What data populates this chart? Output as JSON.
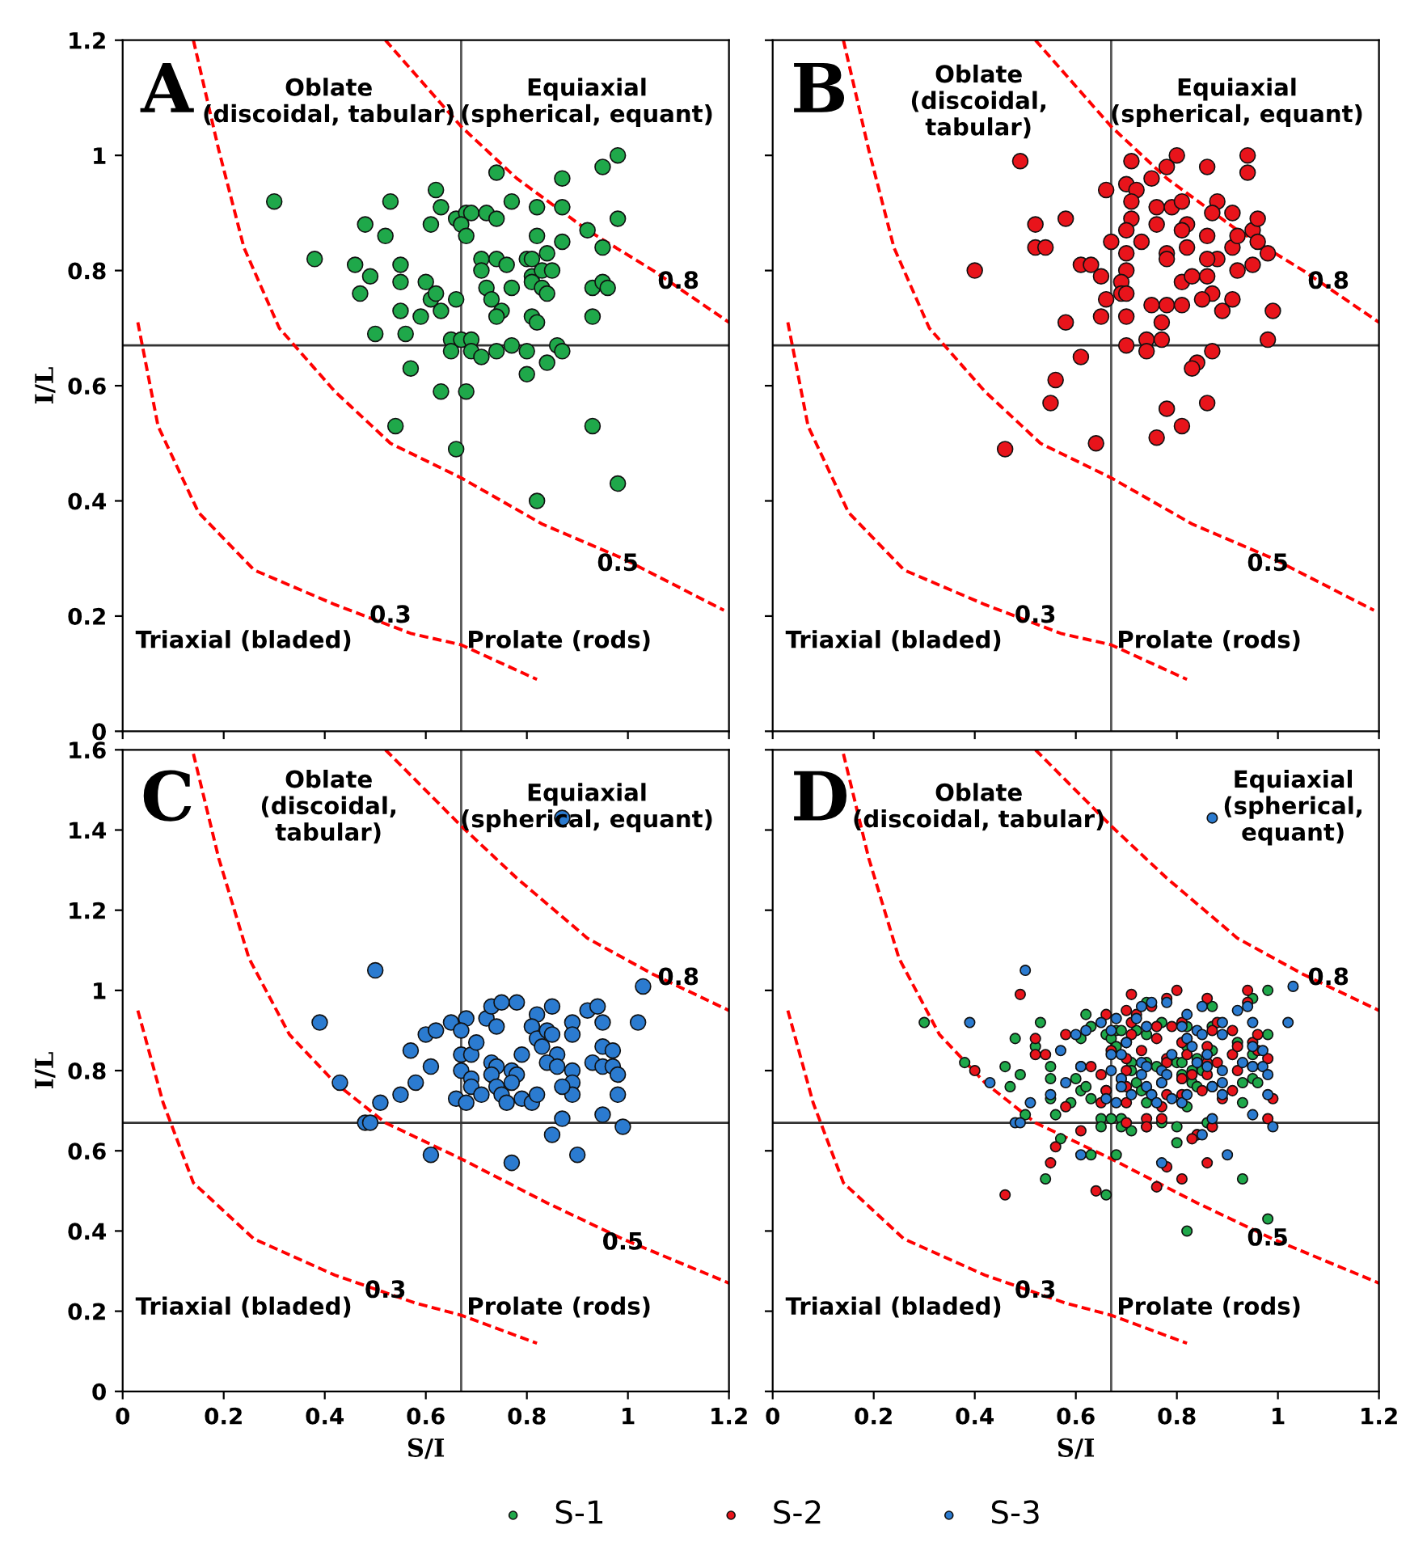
{
  "chart_data": [
    {
      "type": "scatter",
      "title": "A",
      "ylabel": "I/L",
      "xlim": [
        0,
        1.2
      ],
      "ylim": [
        0,
        1.2
      ],
      "xticks": [
        0,
        0.2,
        0.4,
        0.6,
        0.8,
        1,
        1.2
      ],
      "yticks": [
        0,
        0.2,
        0.4,
        0.6,
        0.8,
        1,
        1.2
      ],
      "tick_labels": "y",
      "ref_lines": [
        {
          "axis": "x",
          "value": 0.67,
          "color": "#555555"
        },
        {
          "axis": "y",
          "value": 0.67,
          "color": "#333333"
        }
      ],
      "annotations": [
        "Oblate\n(discoidal, tabular)",
        "Equiaxial\n(spherical, equant)",
        "Triaxial (bladed)",
        "Prolate (rods)",
        {
          "text": "0.8",
          "x": 1.1,
          "y": 0.78
        },
        {
          "text": "0.5",
          "x": 0.98,
          "y": 0.29
        },
        {
          "text": "0.3",
          "x": 0.53,
          "y": 0.2
        }
      ],
      "series": [
        {
          "type": "line",
          "color": "#ff0000",
          "line_style": "dashed",
          "marker": "none",
          "x": [
            0.52,
            0.67,
            0.78,
            0.92,
            1.05,
            1.2
          ],
          "values": [
            1.2,
            1.05,
            0.96,
            0.87,
            0.8,
            0.71
          ]
        },
        {
          "type": "line",
          "color": "#ff0000",
          "line_style": "dashed",
          "marker": "none",
          "x": [
            0.14,
            0.19,
            0.24,
            0.31,
            0.42,
            0.53,
            0.67,
            0.83,
            0.99,
            1.19
          ],
          "values": [
            1.2,
            1.01,
            0.84,
            0.7,
            0.59,
            0.5,
            0.44,
            0.36,
            0.3,
            0.21
          ]
        },
        {
          "type": "line",
          "color": "#ff0000",
          "line_style": "dashed",
          "marker": "none",
          "x": [
            0.03,
            0.07,
            0.15,
            0.26,
            0.42,
            0.57,
            0.67,
            0.82
          ],
          "values": [
            0.71,
            0.53,
            0.38,
            0.28,
            0.22,
            0.17,
            0.15,
            0.09
          ]
        },
        {
          "type": "scatter",
          "color": "#1fa84a",
          "marker": "circle",
          "x": [
            0.3,
            0.38,
            0.46,
            0.48,
            0.49,
            0.47,
            0.5,
            0.53,
            0.52,
            0.55,
            0.55,
            0.55,
            0.56,
            0.57,
            0.54,
            0.6,
            0.59,
            0.61,
            0.62,
            0.63,
            0.61,
            0.62,
            0.63,
            0.66,
            0.66,
            0.68,
            0.69,
            0.67,
            0.68,
            0.72,
            0.74,
            0.74,
            0.77,
            0.82,
            0.87,
            0.87,
            0.95,
            0.98,
            0.98,
            0.92,
            0.82,
            0.87,
            0.84,
            0.95,
            0.71,
            0.74,
            0.71,
            0.76,
            0.8,
            0.81,
            0.81,
            0.83,
            0.85,
            0.77,
            0.72,
            0.73,
            0.75,
            0.74,
            0.81,
            0.83,
            0.84,
            0.81,
            0.82,
            0.93,
            0.95,
            0.96,
            0.93,
            0.65,
            0.65,
            0.67,
            0.69,
            0.69,
            0.71,
            0.74,
            0.77,
            0.8,
            0.86,
            0.87,
            0.84,
            0.8,
            0.63,
            0.68,
            0.66,
            0.93,
            0.98,
            0.82
          ],
          "values": [
            0.92,
            0.82,
            0.81,
            0.88,
            0.79,
            0.76,
            0.69,
            0.92,
            0.86,
            0.81,
            0.78,
            0.73,
            0.69,
            0.63,
            0.53,
            0.78,
            0.72,
            0.88,
            0.94,
            0.91,
            0.75,
            0.76,
            0.73,
            0.75,
            0.89,
            0.9,
            0.9,
            0.88,
            0.86,
            0.9,
            0.89,
            0.97,
            0.92,
            0.91,
            0.96,
            0.91,
            0.98,
            1.0,
            0.89,
            0.87,
            0.86,
            0.85,
            0.83,
            0.84,
            0.82,
            0.82,
            0.8,
            0.81,
            0.82,
            0.82,
            0.79,
            0.8,
            0.8,
            0.77,
            0.77,
            0.75,
            0.73,
            0.72,
            0.78,
            0.77,
            0.76,
            0.72,
            0.71,
            0.77,
            0.78,
            0.77,
            0.72,
            0.68,
            0.66,
            0.68,
            0.68,
            0.66,
            0.65,
            0.66,
            0.67,
            0.66,
            0.67,
            0.66,
            0.64,
            0.62,
            0.59,
            0.59,
            0.49,
            0.53,
            0.43,
            0.4
          ]
        }
      ]
    },
    {
      "type": "scatter",
      "title": "B",
      "xlim": [
        0,
        1.2
      ],
      "ylim": [
        0,
        1.2
      ],
      "xticks": [
        0,
        0.2,
        0.4,
        0.6,
        0.8,
        1,
        1.2
      ],
      "yticks": [
        0,
        0.2,
        0.4,
        0.6,
        0.8,
        1,
        1.2
      ],
      "tick_labels": false,
      "ref_lines": [
        {
          "axis": "x",
          "value": 0.67,
          "color": "#555555"
        },
        {
          "axis": "y",
          "value": 0.67,
          "color": "#333333"
        }
      ],
      "annotations": [
        "Oblate\n(discoidal,\ntabular)",
        "Equiaxial\n(spherical, equant)",
        "Triaxial (bladed)",
        "Prolate (rods)",
        {
          "text": "0.8",
          "x": 1.1,
          "y": 0.78
        },
        {
          "text": "0.5",
          "x": 0.98,
          "y": 0.29
        },
        {
          "text": "0.3",
          "x": 0.52,
          "y": 0.2
        }
      ],
      "series": [
        {
          "type": "line",
          "color": "#ff0000",
          "line_style": "dashed",
          "marker": "none",
          "x": [
            0.52,
            0.67,
            0.78,
            0.92,
            1.05,
            1.2
          ],
          "values": [
            1.2,
            1.05,
            0.96,
            0.87,
            0.8,
            0.71
          ]
        },
        {
          "type": "line",
          "color": "#ff0000",
          "line_style": "dashed",
          "marker": "none",
          "x": [
            0.14,
            0.19,
            0.24,
            0.31,
            0.42,
            0.53,
            0.67,
            0.83,
            0.99,
            1.19
          ],
          "values": [
            1.2,
            1.01,
            0.84,
            0.7,
            0.59,
            0.5,
            0.44,
            0.36,
            0.3,
            0.21
          ]
        },
        {
          "type": "line",
          "color": "#ff0000",
          "line_style": "dashed",
          "marker": "none",
          "x": [
            0.03,
            0.07,
            0.15,
            0.26,
            0.42,
            0.57,
            0.67,
            0.82
          ],
          "values": [
            0.71,
            0.53,
            0.38,
            0.28,
            0.22,
            0.17,
            0.15,
            0.09
          ]
        },
        {
          "type": "scatter",
          "color": "#e8141b",
          "marker": "circle",
          "x": [
            0.49,
            0.4,
            0.52,
            0.58,
            0.52,
            0.54,
            0.61,
            0.63,
            0.65,
            0.58,
            0.65,
            0.66,
            0.66,
            0.67,
            0.61,
            0.56,
            0.55,
            0.46,
            0.64,
            0.71,
            0.7,
            0.72,
            0.75,
            0.78,
            0.8,
            0.86,
            0.94,
            0.94,
            0.71,
            0.71,
            0.76,
            0.79,
            0.81,
            0.76,
            0.82,
            0.7,
            0.73,
            0.81,
            0.82,
            0.78,
            0.78,
            0.7,
            0.7,
            0.69,
            0.69,
            0.7,
            0.7,
            0.7,
            0.74,
            0.74,
            0.75,
            0.78,
            0.81,
            0.77,
            0.77,
            0.81,
            0.83,
            0.86,
            0.87,
            0.85,
            0.88,
            0.87,
            0.91,
            0.86,
            0.88,
            0.86,
            0.91,
            0.92,
            0.95,
            0.96,
            0.96,
            0.98,
            0.95,
            0.92,
            0.91,
            0.89,
            0.99,
            0.98,
            0.87,
            0.84,
            0.83,
            0.78,
            0.86,
            0.81,
            0.76
          ],
          "values": [
            0.99,
            0.8,
            0.88,
            0.89,
            0.84,
            0.84,
            0.81,
            0.81,
            0.79,
            0.71,
            0.72,
            0.75,
            0.94,
            0.85,
            0.65,
            0.61,
            0.57,
            0.49,
            0.5,
            0.99,
            0.95,
            0.94,
            0.96,
            0.98,
            1.0,
            0.98,
            1.0,
            0.97,
            0.92,
            0.89,
            0.91,
            0.91,
            0.92,
            0.88,
            0.88,
            0.87,
            0.85,
            0.87,
            0.84,
            0.83,
            0.82,
            0.83,
            0.8,
            0.78,
            0.76,
            0.76,
            0.72,
            0.67,
            0.68,
            0.66,
            0.74,
            0.74,
            0.74,
            0.71,
            0.68,
            0.78,
            0.79,
            0.79,
            0.76,
            0.75,
            0.92,
            0.9,
            0.9,
            0.86,
            0.82,
            0.82,
            0.84,
            0.86,
            0.87,
            0.89,
            0.85,
            0.83,
            0.81,
            0.8,
            0.75,
            0.73,
            0.73,
            0.68,
            0.66,
            0.64,
            0.63,
            0.56,
            0.57,
            0.53,
            0.51
          ]
        }
      ]
    },
    {
      "type": "scatter",
      "title": "C",
      "xlabel": "S/I",
      "ylabel": "I/L",
      "xlim": [
        0,
        1.2
      ],
      "ylim": [
        0,
        1.6
      ],
      "xticks": [
        0,
        0.2,
        0.4,
        0.6,
        0.8,
        1,
        1.2
      ],
      "yticks": [
        0,
        0.2,
        0.4,
        0.6,
        0.8,
        1,
        1.2,
        1.4,
        1.6
      ],
      "ref_lines": [
        {
          "axis": "x",
          "value": 0.67,
          "color": "#555555"
        },
        {
          "axis": "y",
          "value": 0.67,
          "color": "#333333"
        }
      ],
      "annotations": [
        "Oblate\n(discoidal,\ntabular)",
        "Equiaxial\n(spherical, equant)",
        "Triaxial (bladed)",
        "Prolate (rods)",
        {
          "text": "0.8",
          "x": 1.1,
          "y": 1.03
        },
        {
          "text": "0.5",
          "x": 0.99,
          "y": 0.37
        },
        {
          "text": "0.3",
          "x": 0.52,
          "y": 0.25
        }
      ],
      "series": [
        {
          "type": "line",
          "color": "#ff0000",
          "line_style": "dashed",
          "marker": "none",
          "x": [
            0.52,
            0.67,
            0.78,
            0.92,
            1.05,
            1.2
          ],
          "values": [
            1.6,
            1.41,
            1.28,
            1.13,
            1.04,
            0.95
          ]
        },
        {
          "type": "line",
          "color": "#ff0000",
          "line_style": "dashed",
          "marker": "none",
          "x": [
            0.14,
            0.19,
            0.25,
            0.33,
            0.42,
            0.52,
            0.67,
            0.84,
            0.99,
            1.2
          ],
          "values": [
            1.59,
            1.33,
            1.08,
            0.89,
            0.77,
            0.67,
            0.58,
            0.47,
            0.38,
            0.27
          ]
        },
        {
          "type": "line",
          "color": "#ff0000",
          "line_style": "dashed",
          "marker": "none",
          "x": [
            0.03,
            0.08,
            0.14,
            0.26,
            0.42,
            0.58,
            0.67,
            0.82
          ],
          "values": [
            0.95,
            0.72,
            0.52,
            0.38,
            0.29,
            0.22,
            0.19,
            0.12
          ]
        },
        {
          "type": "scatter",
          "color": "#2b7bd0",
          "marker": "circle",
          "x": [
            0.87,
            0.5,
            0.39,
            0.43,
            0.48,
            0.49,
            0.51,
            0.55,
            0.58,
            0.57,
            0.61,
            0.6,
            0.62,
            0.61,
            0.65,
            0.68,
            0.67,
            0.67,
            0.69,
            0.7,
            0.67,
            0.69,
            0.69,
            0.66,
            0.68,
            0.71,
            0.72,
            0.73,
            0.75,
            0.78,
            0.74,
            0.73,
            0.74,
            0.73,
            0.74,
            0.75,
            0.76,
            0.77,
            0.78,
            0.77,
            0.79,
            0.81,
            0.82,
            0.79,
            0.82,
            0.81,
            0.82,
            0.83,
            0.84,
            0.85,
            0.85,
            0.86,
            0.84,
            0.86,
            0.89,
            0.89,
            0.89,
            0.89,
            0.89,
            0.87,
            0.87,
            0.85,
            0.9,
            0.77,
            0.92,
            0.94,
            0.95,
            0.95,
            0.93,
            0.95,
            0.97,
            0.97,
            0.98,
            0.98,
            0.95,
            0.99,
            1.02,
            1.03
          ],
          "values": [
            1.43,
            1.05,
            0.92,
            0.77,
            0.67,
            0.67,
            0.72,
            0.74,
            0.77,
            0.85,
            0.81,
            0.89,
            0.9,
            0.59,
            0.92,
            0.93,
            0.9,
            0.84,
            0.84,
            0.87,
            0.8,
            0.78,
            0.76,
            0.73,
            0.72,
            0.74,
            0.93,
            0.96,
            0.97,
            0.97,
            0.91,
            0.82,
            0.81,
            0.79,
            0.76,
            0.74,
            0.72,
            0.8,
            0.79,
            0.77,
            0.73,
            0.72,
            0.74,
            0.84,
            0.94,
            0.91,
            0.88,
            0.86,
            0.9,
            0.96,
            0.89,
            0.84,
            0.82,
            0.81,
            0.92,
            0.89,
            0.8,
            0.77,
            0.74,
            0.76,
            0.68,
            0.64,
            0.59,
            0.57,
            0.95,
            0.96,
            0.92,
            0.86,
            0.82,
            0.81,
            0.85,
            0.81,
            0.79,
            0.74,
            0.69,
            0.66,
            0.92,
            1.01
          ]
        }
      ]
    },
    {
      "type": "scatter",
      "title": "D",
      "xlabel": "S/I",
      "xlim": [
        0,
        1.2
      ],
      "ylim": [
        0,
        1.6
      ],
      "xticks": [
        0,
        0.2,
        0.4,
        0.6,
        0.8,
        1,
        1.2
      ],
      "yticks": [
        0,
        0.2,
        0.4,
        0.6,
        0.8,
        1,
        1.2,
        1.4,
        1.6
      ],
      "tick_labels": "x",
      "legend": "bottom",
      "ref_lines": [
        {
          "axis": "x",
          "value": 0.67,
          "color": "#555555"
        },
        {
          "axis": "y",
          "value": 0.67,
          "color": "#333333"
        }
      ],
      "annotations": [
        "Oblate\n(discoidal, tabular)",
        "Equiaxial\n(spherical,\nequant)",
        "Triaxial (bladed)",
        "Prolate (rods)",
        {
          "text": "0.8",
          "x": 1.1,
          "y": 1.03
        },
        {
          "text": "0.5",
          "x": 0.98,
          "y": 0.38
        },
        {
          "text": "0.3",
          "x": 0.52,
          "y": 0.25
        }
      ],
      "series": [
        {
          "type": "line",
          "color": "#ff0000",
          "line_style": "dashed",
          "marker": "none",
          "x": [
            0.52,
            0.67,
            0.78,
            0.92,
            1.05,
            1.2
          ],
          "values": [
            1.6,
            1.41,
            1.28,
            1.13,
            1.04,
            0.95
          ]
        },
        {
          "type": "line",
          "color": "#ff0000",
          "line_style": "dashed",
          "marker": "none",
          "x": [
            0.14,
            0.19,
            0.25,
            0.33,
            0.42,
            0.52,
            0.67,
            0.84,
            0.99,
            1.2
          ],
          "values": [
            1.59,
            1.33,
            1.08,
            0.89,
            0.77,
            0.67,
            0.58,
            0.47,
            0.38,
            0.27
          ]
        },
        {
          "type": "line",
          "color": "#ff0000",
          "line_style": "dashed",
          "marker": "none",
          "x": [
            0.03,
            0.08,
            0.14,
            0.26,
            0.42,
            0.58,
            0.67,
            0.82
          ],
          "values": [
            0.95,
            0.72,
            0.52,
            0.38,
            0.29,
            0.22,
            0.19,
            0.12
          ]
        },
        {
          "type": "scatter",
          "name": "S-1",
          "color": "#1fa84a",
          "marker": "circle",
          "x": [
            0.3,
            0.38,
            0.46,
            0.48,
            0.49,
            0.47,
            0.5,
            0.53,
            0.52,
            0.55,
            0.55,
            0.55,
            0.56,
            0.57,
            0.54,
            0.6,
            0.59,
            0.61,
            0.62,
            0.63,
            0.61,
            0.62,
            0.63,
            0.66,
            0.66,
            0.68,
            0.69,
            0.67,
            0.68,
            0.72,
            0.74,
            0.74,
            0.77,
            0.82,
            0.87,
            0.87,
            0.95,
            0.98,
            0.98,
            0.92,
            0.82,
            0.87,
            0.84,
            0.95,
            0.71,
            0.74,
            0.71,
            0.76,
            0.8,
            0.81,
            0.81,
            0.83,
            0.85,
            0.77,
            0.72,
            0.73,
            null,
            0.74,
            0.81,
            0.83,
            0.84,
            0.81,
            0.82,
            0.93,
            0.95,
            0.96,
            0.93,
            0.65,
            0.65,
            0.67,
            0.69,
            0.69,
            0.71,
            0.74,
            0.77,
            0.8,
            0.86,
            0.87,
            0.84,
            0.8,
            0.63,
            0.68,
            0.66,
            0.93,
            0.98,
            0.82
          ],
          "values": [
            0.92,
            0.82,
            0.81,
            0.88,
            0.79,
            0.76,
            0.69,
            0.92,
            0.86,
            0.81,
            0.78,
            0.73,
            0.69,
            0.63,
            0.53,
            0.78,
            0.72,
            0.88,
            0.94,
            0.91,
            0.75,
            0.76,
            0.73,
            0.75,
            0.89,
            0.9,
            0.9,
            0.88,
            0.86,
            0.9,
            0.89,
            0.97,
            0.92,
            0.91,
            0.96,
            0.91,
            0.98,
            1.0,
            0.89,
            0.87,
            0.86,
            0.85,
            0.83,
            0.84,
            0.82,
            0.82,
            0.8,
            0.81,
            0.82,
            0.82,
            0.79,
            0.8,
            0.8,
            0.77,
            0.77,
            0.75,
            null,
            0.72,
            0.78,
            0.77,
            0.76,
            0.72,
            0.71,
            0.77,
            0.78,
            0.77,
            0.72,
            0.68,
            0.66,
            0.68,
            0.68,
            0.66,
            0.65,
            0.66,
            0.67,
            0.66,
            0.67,
            0.66,
            0.64,
            0.62,
            0.59,
            0.59,
            0.49,
            0.53,
            0.43,
            0.4
          ]
        },
        {
          "type": "scatter",
          "name": "S-2",
          "color": "#e8141b",
          "marker": "circle",
          "x": [
            0.49,
            0.4,
            0.52,
            0.58,
            0.52,
            0.54,
            0.61,
            0.63,
            0.65,
            0.58,
            0.65,
            0.66,
            0.66,
            0.67,
            0.61,
            0.56,
            0.55,
            0.46,
            0.64,
            0.71,
            0.7,
            0.72,
            0.75,
            0.78,
            0.8,
            0.86,
            0.94,
            0.94,
            0.71,
            0.71,
            0.76,
            0.79,
            0.81,
            0.76,
            0.82,
            0.7,
            0.73,
            0.81,
            0.82,
            0.78,
            0.78,
            0.7,
            0.7,
            0.69,
            0.69,
            0.7,
            0.7,
            0.7,
            0.74,
            0.74,
            0.75,
            0.78,
            0.81,
            0.77,
            0.77,
            0.81,
            0.83,
            0.86,
            0.87,
            0.85,
            0.88,
            0.87,
            0.91,
            0.86,
            0.88,
            0.86,
            0.91,
            0.92,
            0.95,
            0.96,
            0.96,
            0.98,
            0.95,
            0.92,
            0.91,
            0.89,
            0.99,
            0.98,
            0.87,
            0.84,
            0.83,
            0.78,
            0.86,
            0.81,
            0.76
          ],
          "values": [
            0.99,
            0.8,
            0.88,
            0.89,
            0.84,
            0.84,
            0.81,
            0.81,
            0.79,
            0.71,
            0.72,
            0.75,
            0.94,
            0.85,
            0.65,
            0.61,
            0.57,
            0.49,
            0.5,
            0.99,
            0.95,
            0.94,
            0.96,
            0.98,
            1.0,
            0.98,
            1.0,
            0.97,
            0.92,
            0.89,
            0.91,
            0.91,
            0.92,
            0.88,
            0.88,
            0.87,
            0.85,
            0.87,
            0.84,
            0.83,
            0.82,
            0.83,
            0.8,
            0.78,
            0.76,
            0.76,
            0.72,
            0.67,
            0.68,
            0.66,
            0.74,
            0.74,
            0.74,
            0.71,
            0.68,
            0.78,
            0.79,
            0.79,
            0.76,
            0.75,
            0.92,
            0.9,
            0.9,
            0.86,
            0.82,
            0.82,
            0.84,
            0.86,
            0.87,
            0.89,
            0.85,
            0.83,
            0.81,
            0.8,
            0.75,
            0.73,
            0.73,
            0.68,
            0.66,
            0.64,
            0.63,
            0.56,
            0.57,
            0.53,
            0.51
          ]
        },
        {
          "type": "scatter",
          "name": "S-3",
          "color": "#2b7bd0",
          "marker": "circle",
          "x": [
            0.87,
            0.5,
            0.39,
            0.43,
            0.48,
            0.49,
            0.51,
            0.55,
            0.58,
            0.57,
            0.61,
            0.6,
            0.62,
            0.61,
            0.65,
            0.68,
            0.67,
            0.67,
            0.69,
            0.7,
            0.67,
            0.69,
            0.69,
            0.66,
            0.68,
            0.71,
            0.72,
            0.73,
            0.75,
            0.78,
            0.74,
            0.73,
            0.74,
            0.73,
            0.74,
            0.75,
            0.76,
            0.77,
            0.78,
            0.77,
            0.79,
            0.81,
            0.82,
            0.79,
            0.82,
            0.81,
            0.82,
            0.83,
            0.84,
            0.85,
            0.85,
            0.86,
            0.84,
            0.86,
            0.89,
            0.89,
            0.89,
            0.89,
            0.89,
            0.87,
            0.87,
            0.85,
            0.9,
            0.77,
            0.92,
            0.94,
            0.95,
            0.95,
            0.93,
            0.95,
            0.97,
            0.97,
            0.98,
            0.98,
            0.95,
            0.99,
            1.02,
            1.03
          ],
          "values": [
            1.43,
            1.05,
            0.92,
            0.77,
            0.67,
            0.67,
            0.72,
            0.74,
            0.77,
            0.85,
            0.81,
            0.89,
            0.9,
            0.59,
            0.92,
            0.93,
            0.9,
            0.84,
            0.84,
            0.87,
            0.8,
            0.78,
            0.76,
            0.73,
            0.72,
            0.74,
            0.93,
            0.96,
            0.97,
            0.97,
            0.91,
            0.82,
            0.81,
            0.79,
            0.76,
            0.74,
            0.72,
            0.8,
            0.79,
            0.77,
            0.73,
            0.72,
            0.74,
            0.84,
            0.94,
            0.91,
            0.88,
            0.86,
            0.9,
            0.96,
            0.89,
            0.84,
            0.82,
            0.81,
            0.92,
            0.89,
            0.8,
            0.77,
            0.74,
            0.76,
            0.68,
            0.64,
            0.59,
            0.57,
            0.95,
            0.96,
            0.92,
            0.86,
            0.82,
            0.81,
            0.85,
            0.81,
            0.79,
            0.74,
            0.69,
            0.66,
            0.92,
            1.01
          ]
        }
      ]
    }
  ]
}
